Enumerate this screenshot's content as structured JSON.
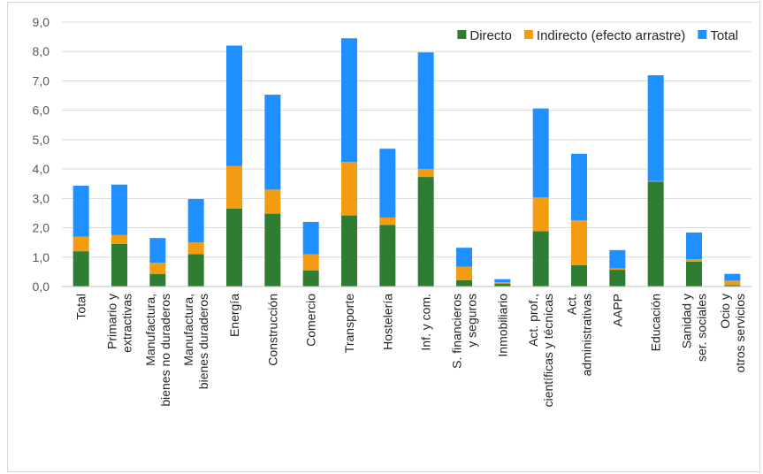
{
  "chart_data": {
    "type": "bar",
    "stacked": true,
    "categories": [
      [
        "Total"
      ],
      [
        "Primario y",
        "extractivas"
      ],
      [
        "Manufactura,",
        "bienes no duraderos"
      ],
      [
        "Manufactura,",
        "bienes duraderos"
      ],
      [
        "Energía"
      ],
      [
        "Construcción"
      ],
      [
        "Comercio"
      ],
      [
        "Transporte"
      ],
      [
        "Hostelería"
      ],
      [
        "Inf. y com."
      ],
      [
        "S. financieros",
        "y seguros"
      ],
      [
        "Inmobiliario"
      ],
      [
        "Act. prof.,",
        "científicas y técnicas"
      ],
      [
        "Act.",
        "administrativas"
      ],
      [
        "AAPP"
      ],
      [
        "Educación"
      ],
      [
        "Sanidad y",
        "ser. sociales"
      ],
      [
        "Ocio y",
        "otros servicios"
      ]
    ],
    "series": [
      {
        "name": "Directo",
        "color": "#2e7d32",
        "values": [
          1.2,
          1.45,
          0.43,
          1.1,
          2.65,
          2.48,
          0.55,
          2.42,
          2.1,
          3.73,
          0.22,
          0.1,
          1.88,
          0.73,
          0.57,
          3.57,
          0.85,
          0.05
        ]
      },
      {
        "name": "Indirecto (efecto arrastre)",
        "color": "#f39c12",
        "values": [
          0.5,
          0.3,
          0.38,
          0.4,
          1.45,
          0.82,
          0.55,
          1.82,
          0.25,
          0.27,
          0.45,
          0.05,
          1.15,
          1.52,
          0.05,
          0.02,
          0.08,
          0.15
        ]
      },
      {
        "name": "Total",
        "color": "#1e90ff",
        "values": [
          1.73,
          1.72,
          0.84,
          1.48,
          4.1,
          3.23,
          1.1,
          4.21,
          2.34,
          3.97,
          0.65,
          0.1,
          3.03,
          2.27,
          0.62,
          3.6,
          0.91,
          0.23
        ]
      }
    ],
    "y_ticks": [
      "0,0",
      "1,0",
      "2,0",
      "3,0",
      "4,0",
      "5,0",
      "6,0",
      "7,0",
      "8,0",
      "9,0"
    ],
    "ylim": [
      0,
      9
    ],
    "grid": true,
    "legend_position": "top-right",
    "title": "",
    "xlabel": "",
    "ylabel": ""
  }
}
